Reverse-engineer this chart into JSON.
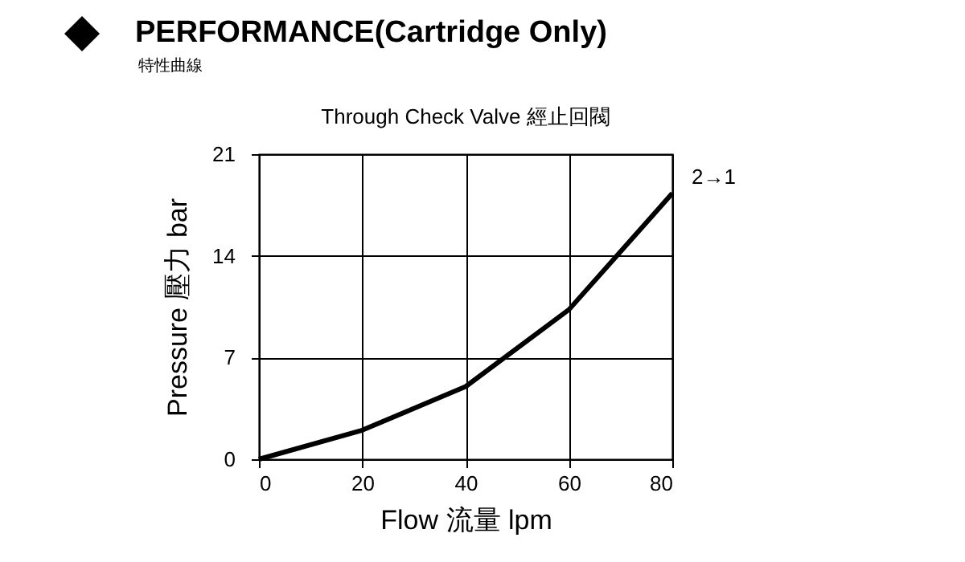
{
  "chart_data": {
    "type": "line",
    "title": "PERFORMANCE(Cartridge Only)",
    "subtitle": "特性曲線",
    "annotations": [
      "Through Check Valve  經止回閥"
    ],
    "xlabel": "Flow 流量 lpm",
    "ylabel": "Pressure 壓力 bar",
    "x": [
      0,
      20,
      40,
      60,
      80
    ],
    "series": [
      {
        "name": "2→1",
        "color": "#000000",
        "values": [
          0,
          2,
          5,
          10.3,
          18.3
        ]
      }
    ],
    "xlim": [
      0,
      80
    ],
    "xticks": [
      0,
      20,
      40,
      60,
      80
    ],
    "ylim": [
      0,
      21
    ],
    "yticks": [
      0,
      7,
      14,
      21
    ],
    "grid": true,
    "legend": false,
    "marker": "none",
    "line_style": "solid"
  }
}
